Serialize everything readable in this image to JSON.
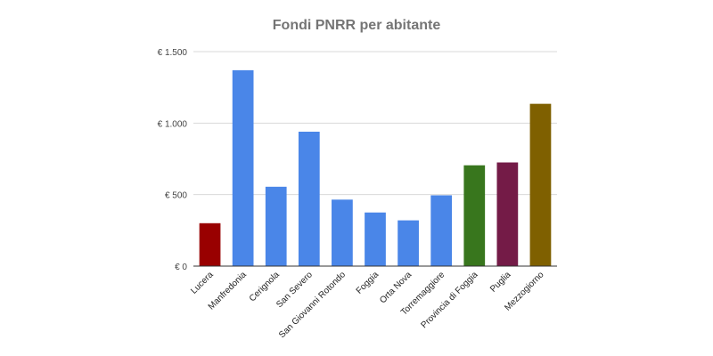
{
  "chart_data": {
    "type": "bar",
    "title": "Fondi PNRR per abitante",
    "xlabel": "",
    "ylabel": "",
    "categories": [
      "Lucera",
      "Manfredonia",
      "Cerignola",
      "San Severo",
      "San Giovanni Rotondo",
      "Foggia",
      "Orta Nova",
      "Torremaggiore",
      "Provincia di Foggia",
      "Puglia",
      "Mezzogiorno"
    ],
    "values": [
      300,
      1370,
      555,
      940,
      465,
      375,
      320,
      495,
      705,
      725,
      1135
    ],
    "bar_colors": [
      "#990000",
      "#4a86e8",
      "#4a86e8",
      "#4a86e8",
      "#4a86e8",
      "#4a86e8",
      "#4a86e8",
      "#4a86e8",
      "#38761d",
      "#741b47",
      "#7f6000"
    ],
    "ylim": [
      0,
      1500
    ],
    "yticks": [
      0,
      500,
      1000,
      1500
    ],
    "ytick_labels": [
      "€ 0",
      "€ 500",
      "€ 1.000",
      "€ 1.500"
    ],
    "grid": true,
    "legend": "none"
  }
}
